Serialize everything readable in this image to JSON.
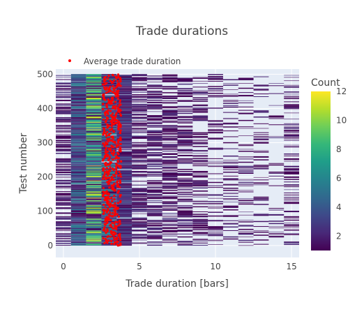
{
  "chart_data": {
    "type": "heatmap",
    "title": "Trade durations",
    "xlabel": "Trade duration [bars]",
    "ylabel": "Test number",
    "xlim": [
      -0.5,
      15.5
    ],
    "ylim": [
      -35,
      515
    ],
    "x_ticks": [
      0,
      5,
      10,
      15
    ],
    "y_ticks": [
      0,
      100,
      200,
      300,
      400,
      500
    ],
    "x_bins": [
      {
        "center": 0,
        "width": 1
      },
      {
        "center": 1,
        "width": 1
      },
      {
        "center": 2,
        "width": 1
      },
      {
        "center": 3,
        "width": 1
      },
      {
        "center": 4,
        "width": 1
      },
      {
        "center": 5,
        "width": 1
      },
      {
        "center": 6,
        "width": 1
      },
      {
        "center": 7,
        "width": 1
      },
      {
        "center": 8,
        "width": 1
      },
      {
        "center": 9,
        "width": 1
      },
      {
        "center": 10,
        "width": 1
      },
      {
        "center": 11,
        "width": 1
      },
      {
        "center": 12,
        "width": 1
      },
      {
        "center": 13,
        "width": 1
      },
      {
        "center": 14,
        "width": 1
      },
      {
        "center": 15,
        "width": 1
      }
    ],
    "n_tests": 500,
    "colorscale": "Viridis",
    "colorbar": {
      "title": "Count",
      "min": 1,
      "max": 12,
      "ticks": [
        2,
        4,
        6,
        8,
        10,
        12
      ]
    },
    "scatter_series": {
      "name": "Average trade duration",
      "color": "#ff0000",
      "x_range": [
        2.6,
        3.8
      ]
    },
    "legend_position": "top-left",
    "grid": true
  }
}
